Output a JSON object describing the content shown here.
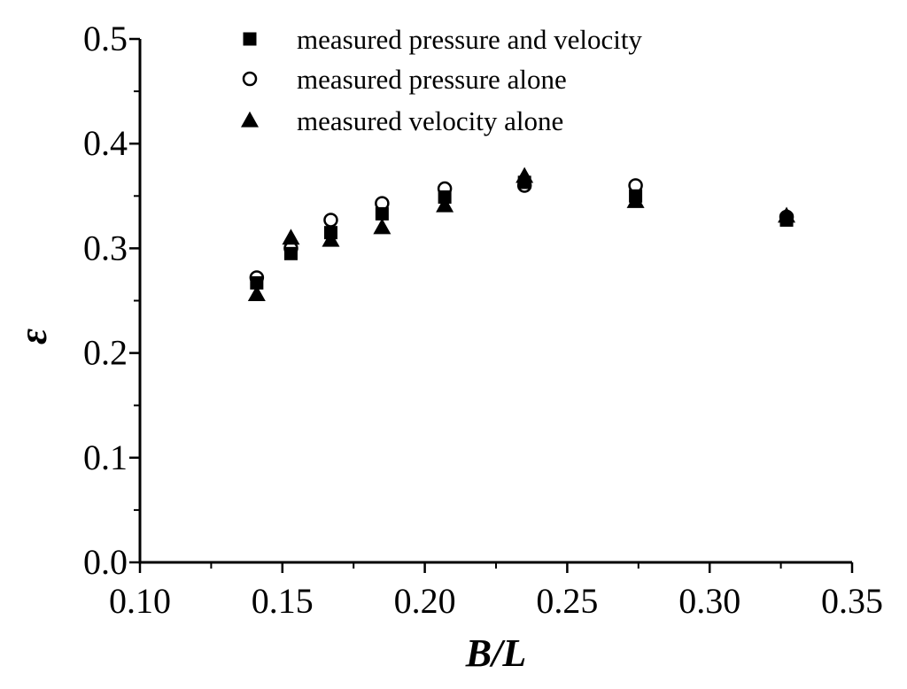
{
  "chart_data": {
    "type": "scatter",
    "title": "",
    "xlabel": "B/L",
    "ylabel": "ε",
    "xlim": [
      0.1,
      0.35
    ],
    "ylim": [
      0.0,
      0.5
    ],
    "x_major_ticks": [
      0.1,
      0.15,
      0.2,
      0.25,
      0.3,
      0.35
    ],
    "x_tick_labels": [
      "0.10",
      "0.15",
      "0.20",
      "0.25",
      "0.30",
      "0.35"
    ],
    "y_major_ticks": [
      0.0,
      0.1,
      0.2,
      0.3,
      0.4,
      0.5
    ],
    "y_tick_labels": [
      "0.0",
      "0.1",
      "0.2",
      "0.3",
      "0.4",
      "0.5"
    ],
    "grid": false,
    "legend_position": "top-left",
    "series": [
      {
        "name": "measured pressure and velocity",
        "marker": "filled-square",
        "x": [
          0.141,
          0.153,
          0.167,
          0.185,
          0.207,
          0.235,
          0.274,
          0.327
        ],
        "y": [
          0.267,
          0.295,
          0.315,
          0.333,
          0.349,
          0.363,
          0.35,
          0.327
        ]
      },
      {
        "name": "measured pressure alone",
        "marker": "open-circle",
        "x": [
          0.141,
          0.153,
          0.167,
          0.185,
          0.207,
          0.235,
          0.274,
          0.327
        ],
        "y": [
          0.272,
          0.3,
          0.327,
          0.343,
          0.357,
          0.36,
          0.36,
          0.33
        ]
      },
      {
        "name": "measured velocity alone",
        "marker": "filled-triangle",
        "x": [
          0.141,
          0.153,
          0.167,
          0.185,
          0.207,
          0.235,
          0.274,
          0.327
        ],
        "y": [
          0.256,
          0.31,
          0.308,
          0.32,
          0.341,
          0.369,
          0.345,
          0.331
        ]
      }
    ]
  }
}
